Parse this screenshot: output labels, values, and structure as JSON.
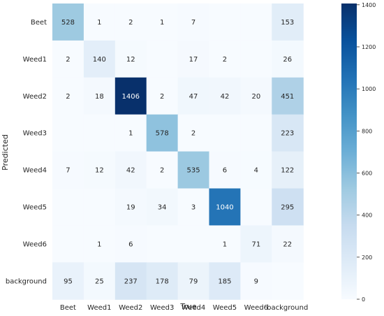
{
  "chart_data": {
    "type": "heatmap",
    "rows": [
      "Beet",
      "Weed1",
      "Weed2",
      "Weed3",
      "Weed4",
      "Weed5",
      "Weed6",
      "background"
    ],
    "columns": [
      "Beet",
      "Weed1",
      "Weed2",
      "Weed3",
      "Weed4",
      "Weed5",
      "Weed6",
      "background"
    ],
    "values": [
      [
        528,
        1,
        2,
        1,
        7,
        null,
        null,
        153
      ],
      [
        2,
        140,
        12,
        null,
        17,
        2,
        null,
        26
      ],
      [
        2,
        18,
        1406,
        2,
        47,
        42,
        20,
        451
      ],
      [
        null,
        null,
        1,
        578,
        2,
        null,
        null,
        223
      ],
      [
        7,
        12,
        42,
        2,
        535,
        6,
        4,
        122
      ],
      [
        null,
        null,
        19,
        34,
        3,
        1040,
        null,
        295
      ],
      [
        null,
        1,
        6,
        null,
        null,
        1,
        71,
        22
      ],
      [
        95,
        25,
        237,
        178,
        79,
        185,
        9,
        null
      ]
    ],
    "xlabel": "True",
    "ylabel": "Predicted",
    "colorbar": {
      "ticks": [
        0,
        200,
        400,
        600,
        800,
        1000,
        1200,
        1400
      ],
      "range": [
        0,
        1406
      ],
      "colormap": "Blues"
    },
    "grid": false,
    "colors": {
      "low": "#f7fbff",
      "high": "#08306b",
      "text_dark": "#262626",
      "text_light": "#ffffff"
    }
  }
}
